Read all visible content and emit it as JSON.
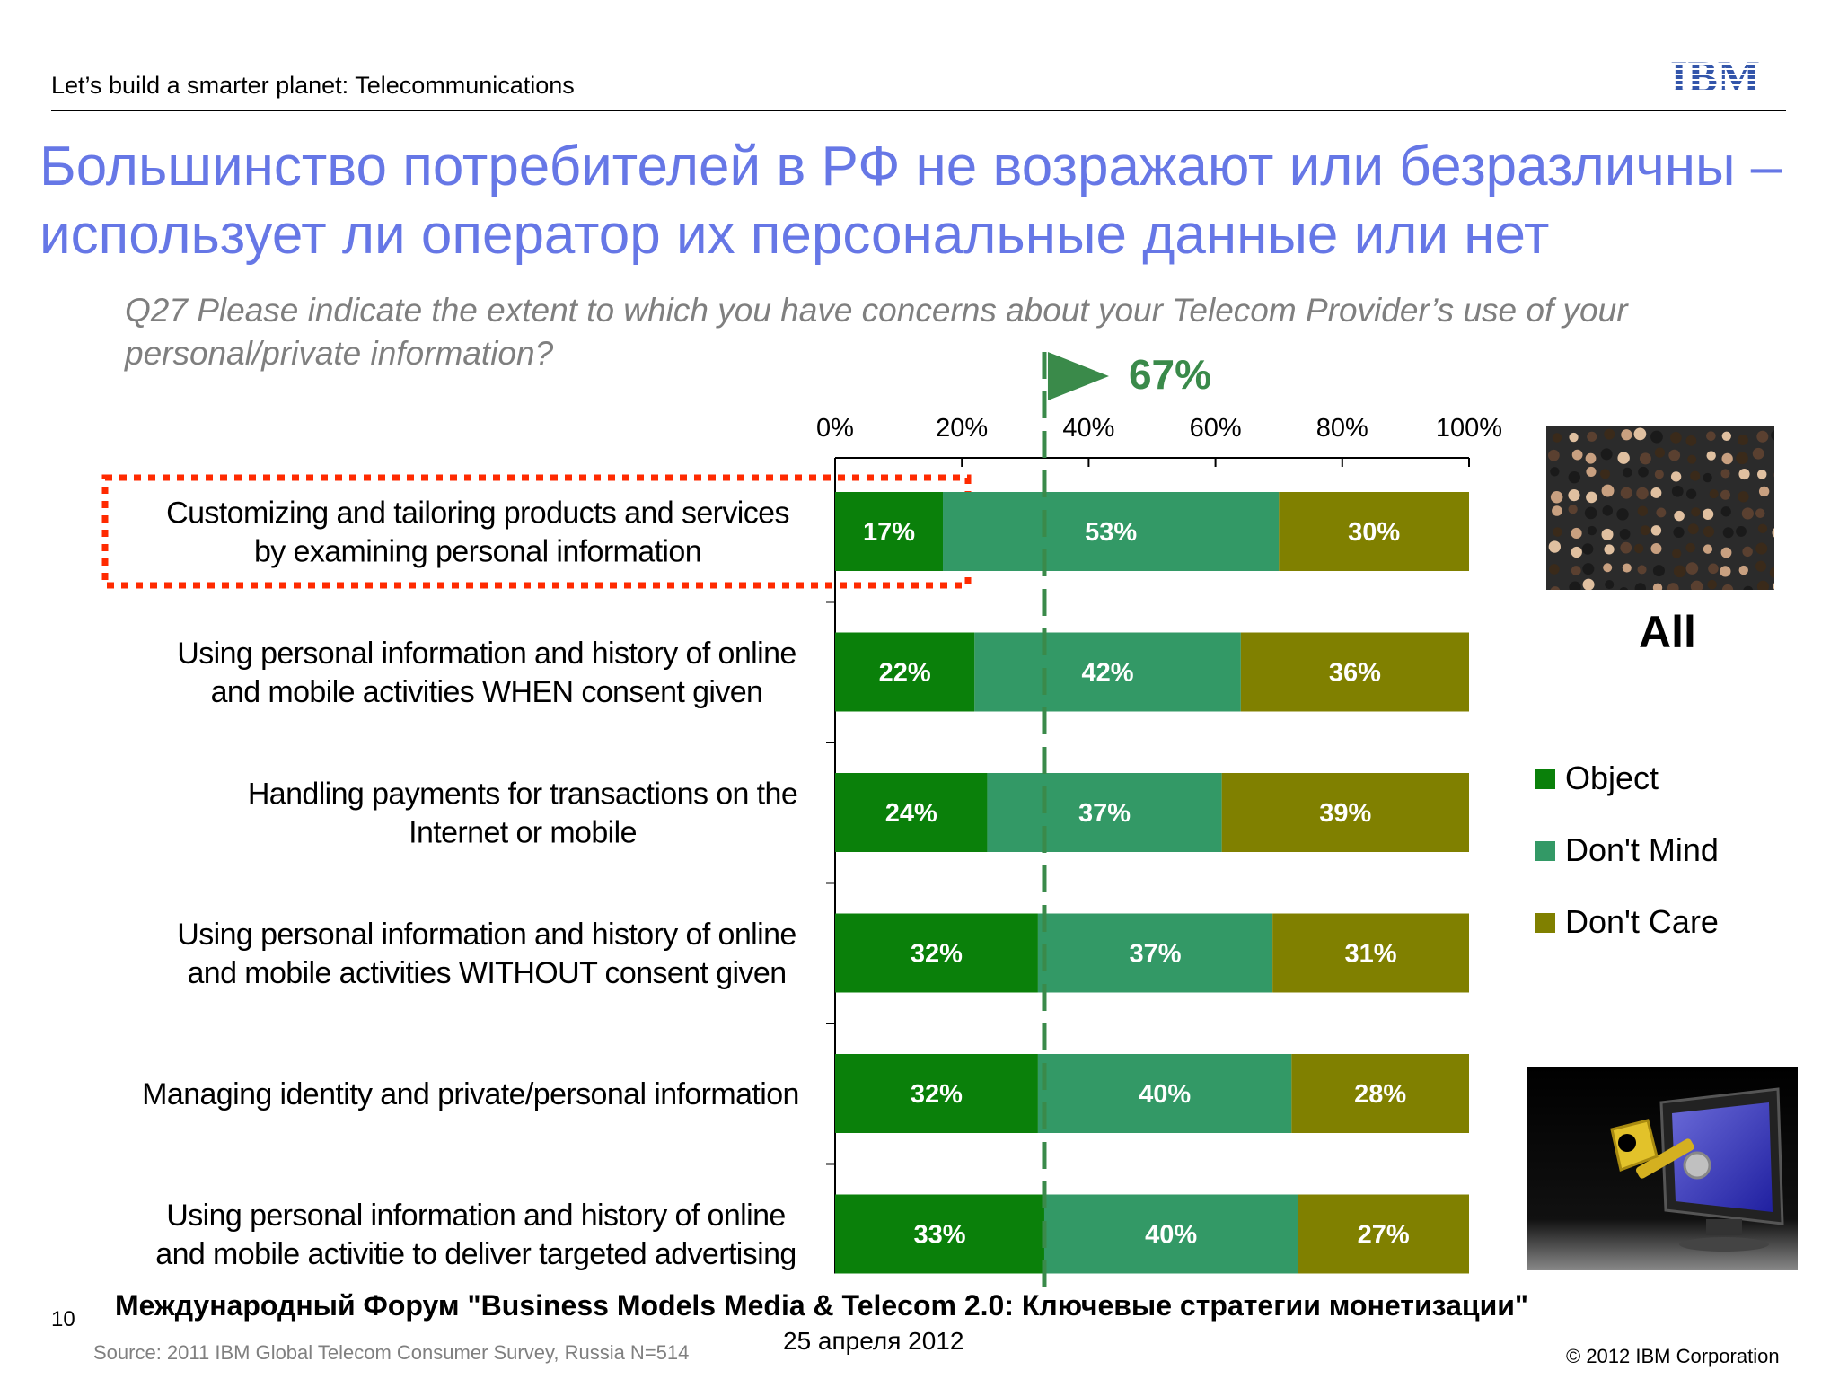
{
  "header": {
    "text": "Let’s build a smarter planet: Telecommunications",
    "logo_text": "IBM"
  },
  "title": "Большинство потребителей в РФ не возражают или безразличны – использует ли оператор их персональные данные или нет",
  "question": "Q27  Please indicate the extent to which you have concerns about your Telecom Provider’s use of your personal/private information?",
  "marker": {
    "value": 33,
    "label": "67%"
  },
  "chart_data": {
    "type": "bar",
    "orientation": "horizontal",
    "stacked": true,
    "xlim": [
      0,
      100
    ],
    "xticks": [
      "0%",
      "20%",
      "40%",
      "60%",
      "80%",
      "100%"
    ],
    "categories": [
      [
        "Customizing and tailoring products and services",
        "by examining personal information"
      ],
      [
        "Using personal information and history of online",
        "and mobile activities WHEN consent given"
      ],
      [
        "Handling payments for transactions on the",
        "Internet or mobile"
      ],
      [
        "Using personal information and history of online",
        "and mobile activities WITHOUT consent given"
      ],
      [
        "Managing identity and private/personal information"
      ],
      [
        "Using  personal information and history of online",
        "and mobile activitie to deliver targeted advertising"
      ]
    ],
    "series": [
      {
        "name": "Object",
        "color": "#0a800a",
        "values": [
          17,
          22,
          24,
          32,
          32,
          33
        ]
      },
      {
        "name": "Don't Mind",
        "color": "#339966",
        "values": [
          53,
          42,
          37,
          37,
          40,
          40
        ]
      },
      {
        "name": "Don't Care",
        "color": "#808000",
        "values": [
          30,
          36,
          39,
          31,
          28,
          27
        ]
      }
    ],
    "highlight_category": 0,
    "legend_position": "right"
  },
  "side_label": "All",
  "footer": {
    "forum": "Международный Форум \"Business Models Media & Telecom 2.0: Ключевые стратегии монетизации\"",
    "date": "25 апреля 2012",
    "source": "Source: 2011 IBM Global Telecom Consumer Survey, Russia N=514",
    "page": "10",
    "copyright": "© 2012 IBM Corporation"
  }
}
